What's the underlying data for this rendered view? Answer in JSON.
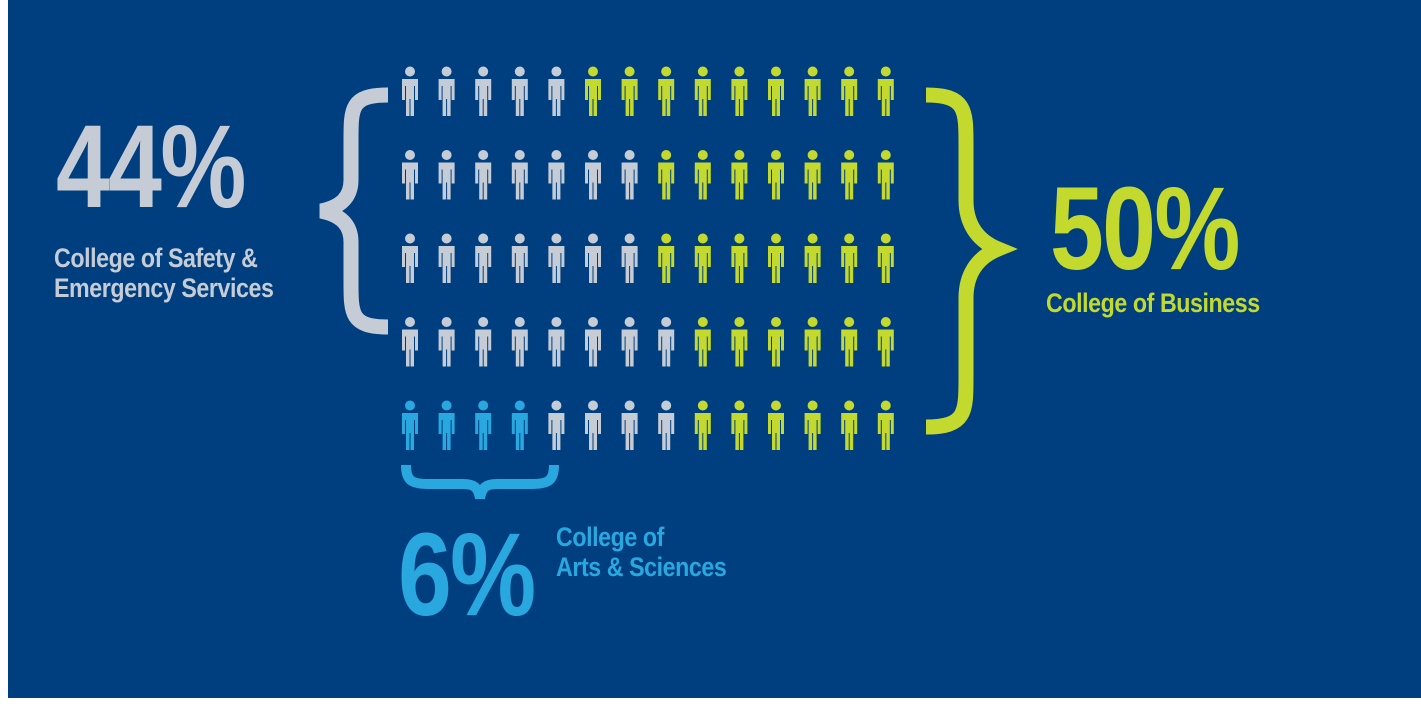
{
  "colors": {
    "background": "#003f7f",
    "safety": "#c5ccd6",
    "business": "#c4d92e",
    "arts": "#29a8e0"
  },
  "chart_data": {
    "type": "pictograph",
    "total_icons": 70,
    "rows": [
      [
        "safety",
        "safety",
        "safety",
        "safety",
        "safety",
        "business",
        "business",
        "business",
        "business",
        "business",
        "business",
        "business",
        "business",
        "business"
      ],
      [
        "safety",
        "safety",
        "safety",
        "safety",
        "safety",
        "safety",
        "safety",
        "business",
        "business",
        "business",
        "business",
        "business",
        "business",
        "business"
      ],
      [
        "safety",
        "safety",
        "safety",
        "safety",
        "safety",
        "safety",
        "safety",
        "business",
        "business",
        "business",
        "business",
        "business",
        "business",
        "business"
      ],
      [
        "safety",
        "safety",
        "safety",
        "safety",
        "safety",
        "safety",
        "safety",
        "safety",
        "business",
        "business",
        "business",
        "business",
        "business",
        "business"
      ],
      [
        "arts",
        "arts",
        "arts",
        "arts",
        "safety",
        "safety",
        "safety",
        "safety",
        "business",
        "business",
        "business",
        "business",
        "business",
        "business"
      ]
    ],
    "series": [
      {
        "name": "College of Safety & Emergency Services",
        "percent": "44%",
        "value": 44,
        "label_lines": [
          "College of Safety &",
          "Emergency Services"
        ]
      },
      {
        "name": "College of Business",
        "percent": "50%",
        "value": 50,
        "label_lines": [
          "College of Business"
        ]
      },
      {
        "name": "College of Arts & Sciences",
        "percent": "6%",
        "value": 6,
        "label_lines": [
          "College of",
          "Arts & Sciences"
        ]
      }
    ]
  }
}
